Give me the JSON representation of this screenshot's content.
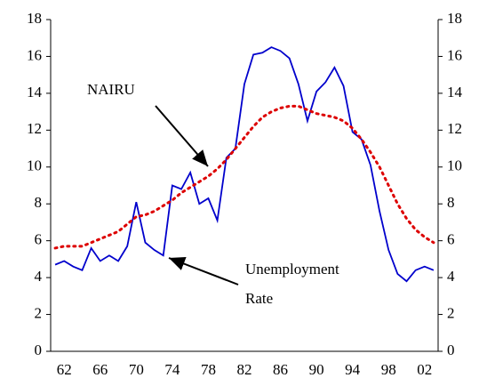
{
  "chart_data": {
    "type": "line",
    "categories": [
      null,
      "62",
      null,
      null,
      null,
      "66",
      null,
      null,
      null,
      "70",
      null,
      null,
      null,
      "74",
      null,
      null,
      null,
      "78",
      null,
      null,
      null,
      "82",
      null,
      null,
      null,
      "86",
      null,
      null,
      null,
      "90",
      null,
      null,
      null,
      "94",
      null,
      null,
      null,
      "98",
      null,
      null,
      null,
      "02",
      null
    ],
    "series": [
      {
        "name": "Unemployment Rate",
        "color": "#0000cc",
        "style": "solid",
        "values": [
          4.7,
          4.9,
          4.6,
          4.4,
          5.6,
          4.9,
          5.2,
          4.9,
          5.7,
          8.1,
          5.9,
          5.5,
          5.2,
          9.0,
          8.8,
          9.7,
          8.0,
          8.3,
          7.1,
          10.5,
          11.0,
          14.5,
          16.1,
          16.2,
          16.5,
          16.3,
          15.9,
          14.5,
          12.5,
          14.1,
          14.6,
          15.4,
          14.4,
          11.9,
          11.5,
          10.1,
          7.6,
          5.5,
          4.2,
          3.8,
          4.4,
          4.6,
          4.4
        ]
      },
      {
        "name": "NAIRU",
        "color": "#dd0000",
        "style": "dotted",
        "values": [
          5.6,
          5.7,
          5.7,
          5.7,
          5.9,
          6.1,
          6.3,
          6.5,
          6.9,
          7.3,
          7.4,
          7.6,
          7.9,
          8.2,
          8.6,
          8.9,
          9.2,
          9.5,
          9.9,
          10.4,
          11.0,
          11.6,
          12.2,
          12.7,
          13.0,
          13.2,
          13.3,
          13.3,
          13.1,
          12.9,
          12.8,
          12.7,
          12.5,
          12.1,
          11.5,
          10.8,
          10.0,
          9.0,
          8.0,
          7.2,
          6.6,
          6.2,
          5.9
        ]
      }
    ],
    "annotations": [
      "NAIRU",
      "Unemployment",
      "Rate"
    ],
    "ylim": [
      0,
      18
    ],
    "yticks": [
      0,
      2,
      4,
      6,
      8,
      10,
      12,
      14,
      16,
      18
    ],
    "y2lim": [
      0,
      18
    ],
    "y2ticks": [
      0,
      2,
      4,
      6,
      8,
      10,
      12,
      14,
      16,
      18
    ]
  }
}
